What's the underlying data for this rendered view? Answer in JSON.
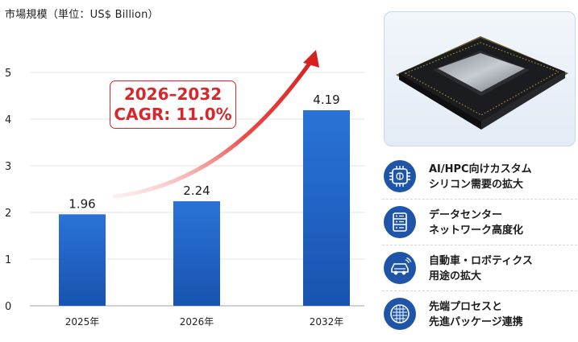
{
  "chart_data": {
    "type": "bar",
    "title": "市場規模（単位：US$ Billion）",
    "categories": [
      "2025年",
      "2026年",
      "2032年"
    ],
    "values": [
      1.96,
      2.24,
      4.19
    ],
    "data_labels": [
      "1.96",
      "2.24",
      "4.19"
    ],
    "ylim": [
      0,
      5
    ],
    "yticks": [
      0,
      1,
      2,
      3,
      4,
      5
    ],
    "grid": true,
    "bar_color": "#1f63c6",
    "annotation": {
      "line1": "2026–2032",
      "line2": "CAGR: 11.0%",
      "color": "#d9262a"
    }
  },
  "features": [
    {
      "icon": "chip-brain-icon",
      "line1": "AI/HPC向けカスタム",
      "line2": "シリコン需要の拡大"
    },
    {
      "icon": "server-rack-icon",
      "line1": "データセンター",
      "line2": "ネットワーク高度化"
    },
    {
      "icon": "car-icon",
      "line1": "自動車・ロボティクス",
      "line2": "用途の拡大"
    },
    {
      "icon": "wafer-icon",
      "line1": "先端プロセスと",
      "line2": "先進パッケージ連携"
    }
  ],
  "colors": {
    "icon_bg": "#1f55a8",
    "accent_red": "#d9262a"
  }
}
